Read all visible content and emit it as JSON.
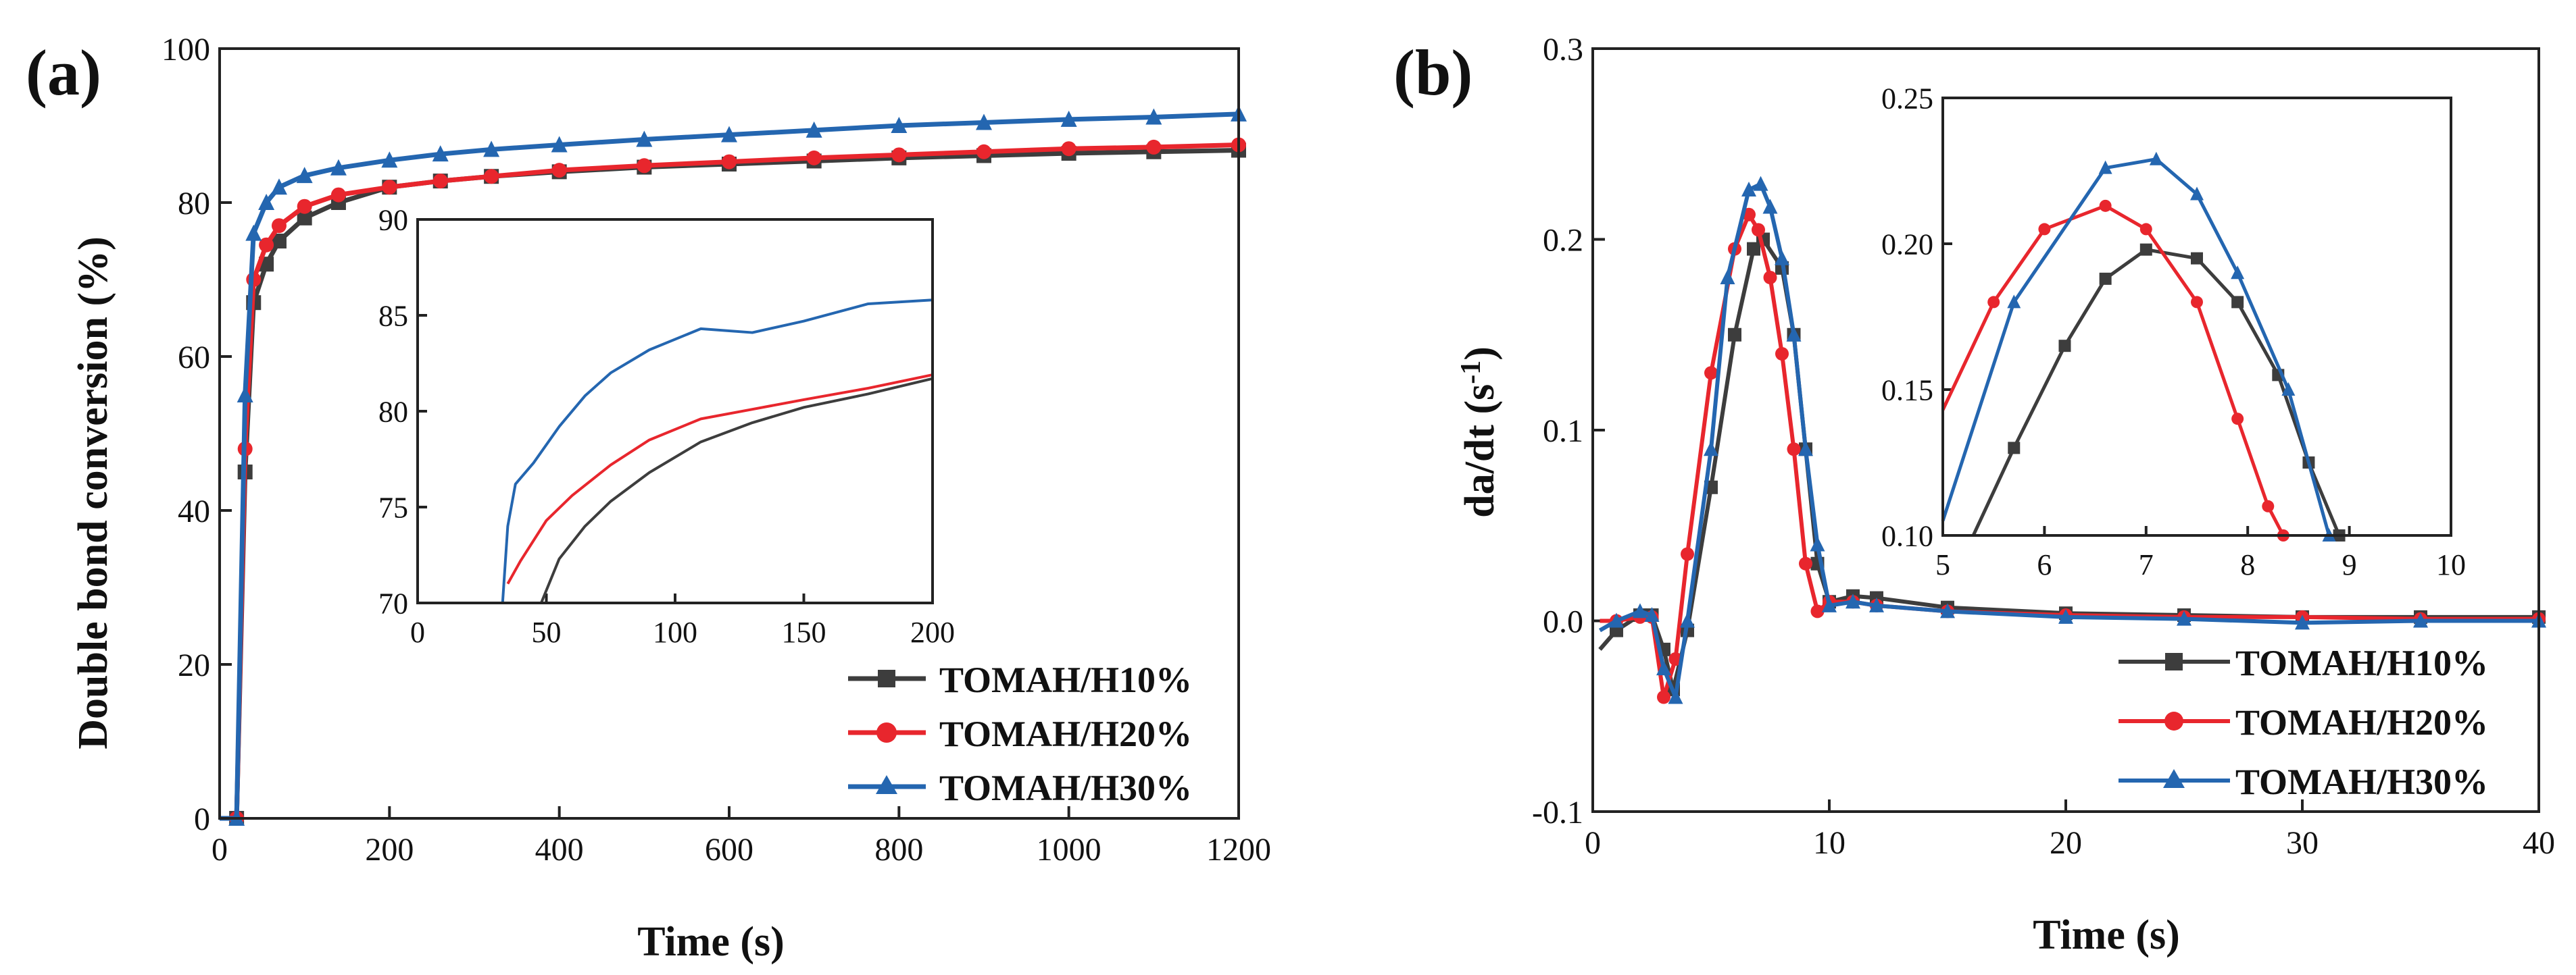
{
  "colors": {
    "h10": "#3d3d3d",
    "h20": "#e8262d",
    "h30": "#2466b0"
  },
  "chart_data": [
    {
      "panel": "(a)",
      "type": "line",
      "xlabel": "Time (s)",
      "ylabel": "Double bond conversion (%)",
      "xlim": [
        0,
        1200
      ],
      "ylim": [
        0,
        100
      ],
      "xticks": [
        0,
        200,
        400,
        600,
        800,
        1000,
        1200
      ],
      "yticks": [
        0,
        20,
        40,
        60,
        80,
        100
      ],
      "legend_position": "bottom-right",
      "series": [
        {
          "name": "TOMAH/H10%",
          "color_key": "h10",
          "marker": "square",
          "x": [
            0,
            20,
            30,
            40,
            55,
            70,
            100,
            140,
            200,
            260,
            320,
            400,
            500,
            600,
            700,
            800,
            900,
            1000,
            1100,
            1200
          ],
          "y": [
            0,
            0,
            45,
            67,
            72,
            75,
            78,
            80,
            82,
            82.8,
            83.4,
            84,
            84.6,
            85,
            85.4,
            85.8,
            86.1,
            86.4,
            86.6,
            86.8
          ]
        },
        {
          "name": "TOMAH/H20%",
          "color_key": "h20",
          "marker": "circle",
          "x": [
            0,
            20,
            30,
            40,
            55,
            70,
            100,
            140,
            200,
            260,
            320,
            400,
            500,
            600,
            700,
            800,
            900,
            1000,
            1100,
            1200
          ],
          "y": [
            0,
            0,
            48,
            70,
            74.5,
            77,
            79.5,
            81,
            82,
            82.8,
            83.4,
            84.2,
            84.8,
            85.3,
            85.8,
            86.2,
            86.6,
            87,
            87.2,
            87.5
          ]
        },
        {
          "name": "TOMAH/H30%",
          "color_key": "h30",
          "marker": "triangle",
          "x": [
            0,
            20,
            30,
            40,
            55,
            70,
            100,
            140,
            200,
            260,
            320,
            400,
            500,
            600,
            700,
            800,
            900,
            1000,
            1100,
            1200
          ],
          "y": [
            0,
            0,
            55,
            76,
            80,
            82,
            83.5,
            84.5,
            85.5,
            86.3,
            86.9,
            87.5,
            88.2,
            88.8,
            89.4,
            90,
            90.4,
            90.8,
            91.1,
            91.5
          ]
        }
      ]
    },
    {
      "panel": "(a) inset",
      "type": "line",
      "xlim": [
        0,
        200
      ],
      "ylim": [
        70,
        90
      ],
      "xticks": [
        0,
        50,
        100,
        150,
        200
      ],
      "yticks": [
        70,
        75,
        80,
        85,
        90
      ],
      "series": [
        {
          "name": "TOMAH/H10%",
          "color_key": "h10",
          "x": [
            48,
            55,
            65,
            75,
            90,
            110,
            130,
            150,
            175,
            200
          ],
          "y": [
            70,
            72.3,
            74,
            75.3,
            76.8,
            78.4,
            79.4,
            80.2,
            80.9,
            81.7
          ]
        },
        {
          "name": "TOMAH/H20%",
          "color_key": "h20",
          "x": [
            35,
            40,
            50,
            60,
            75,
            90,
            110,
            130,
            150,
            175,
            200
          ],
          "y": [
            71,
            72.2,
            74.3,
            75.6,
            77.2,
            78.5,
            79.6,
            80.1,
            80.6,
            81.2,
            81.9
          ]
        },
        {
          "name": "TOMAH/H30%",
          "color_key": "h30",
          "x": [
            33,
            35,
            38,
            45,
            55,
            65,
            75,
            90,
            110,
            130,
            150,
            175,
            200
          ],
          "y": [
            70,
            74,
            76.2,
            77.3,
            79.2,
            80.8,
            82,
            83.2,
            84.3,
            84.1,
            84.7,
            85.6,
            85.8
          ]
        }
      ]
    },
    {
      "panel": "(b)",
      "type": "line",
      "xlabel": "Time (s)",
      "ylabel_main": "da/dt (s",
      "ylabel_sup": "-1",
      "ylabel_tail": ")",
      "xlim": [
        0,
        40
      ],
      "ylim": [
        -0.1,
        0.3
      ],
      "xticks": [
        0,
        10,
        20,
        30,
        40
      ],
      "ytick_labels": [
        "-0.1",
        "0.0",
        "0.1",
        "0.2",
        "0.3"
      ],
      "legend_position": "bottom-right",
      "series": [
        {
          "name": "TOMAH/H10%",
          "color_key": "h10",
          "marker": "square",
          "x": [
            0.3,
            1,
            2,
            2.5,
            3,
            3.4,
            4,
            5,
            6,
            6.8,
            7.2,
            8,
            8.5,
            9,
            9.5,
            10,
            11,
            12,
            15,
            20,
            25,
            30,
            35,
            40
          ],
          "y": [
            -0.015,
            -0.005,
            0.003,
            0.003,
            -0.015,
            -0.036,
            -0.005,
            0.07,
            0.15,
            0.195,
            0.2,
            0.185,
            0.15,
            0.09,
            0.03,
            0.01,
            0.013,
            0.012,
            0.007,
            0.004,
            0.003,
            0.002,
            0.002,
            0.002
          ]
        },
        {
          "name": "TOMAH/H20%",
          "color_key": "h20",
          "marker": "circle",
          "x": [
            0.3,
            1,
            2,
            2.5,
            3,
            3.5,
            4,
            5,
            6,
            6.6,
            7,
            7.5,
            8,
            8.5,
            9,
            9.5,
            10,
            11,
            12,
            15,
            20,
            25,
            30,
            35,
            40
          ],
          "y": [
            0,
            0,
            0.002,
            0.002,
            -0.04,
            -0.02,
            0.035,
            0.13,
            0.195,
            0.213,
            0.205,
            0.18,
            0.14,
            0.09,
            0.03,
            0.005,
            0.01,
            0.01,
            0.008,
            0.005,
            0.003,
            0.002,
            0.002,
            0.001,
            0.001
          ]
        },
        {
          "name": "TOMAH/H30%",
          "color_key": "h30",
          "marker": "triangle",
          "x": [
            0.3,
            1,
            2,
            2.5,
            3,
            3.5,
            4,
            5,
            5.7,
            6.6,
            7.1,
            7.5,
            8,
            8.5,
            9,
            9.5,
            10,
            11,
            12,
            15,
            20,
            25,
            30,
            35,
            40
          ],
          "y": [
            -0.005,
            0,
            0.005,
            0.003,
            -0.025,
            -0.04,
            0,
            0.09,
            0.18,
            0.226,
            0.229,
            0.217,
            0.19,
            0.15,
            0.09,
            0.04,
            0.008,
            0.01,
            0.008,
            0.005,
            0.002,
            0.001,
            -0.001,
            0,
            0
          ]
        }
      ]
    },
    {
      "panel": "(b) inset",
      "type": "line",
      "xlim": [
        5,
        10
      ],
      "ylim": [
        0.1,
        0.25
      ],
      "xticks": [
        5,
        6,
        7,
        8,
        9,
        10
      ],
      "ytick_labels": [
        "0.10",
        "0.15",
        "0.20",
        "0.25"
      ],
      "series": [
        {
          "name": "TOMAH/H10%",
          "color_key": "h10",
          "marker": "square",
          "x": [
            5.3,
            5.7,
            6.2,
            6.6,
            7,
            7.5,
            7.9,
            8.3,
            8.6,
            8.9
          ],
          "y": [
            0.1,
            0.13,
            0.165,
            0.188,
            0.198,
            0.195,
            0.18,
            0.155,
            0.125,
            0.1
          ]
        },
        {
          "name": "TOMAH/H20%",
          "color_key": "h20",
          "marker": "circle",
          "x": [
            5,
            5.5,
            6,
            6.6,
            7,
            7.5,
            7.9,
            8.2,
            8.35
          ],
          "y": [
            0.143,
            0.18,
            0.205,
            0.213,
            0.205,
            0.18,
            0.14,
            0.11,
            0.1
          ]
        },
        {
          "name": "TOMAH/H30%",
          "color_key": "h30",
          "marker": "triangle",
          "x": [
            5,
            5.7,
            6.6,
            7.1,
            7.5,
            7.9,
            8.4,
            8.8
          ],
          "y": [
            0.105,
            0.18,
            0.226,
            0.229,
            0.217,
            0.19,
            0.15,
            0.1
          ]
        }
      ]
    }
  ]
}
